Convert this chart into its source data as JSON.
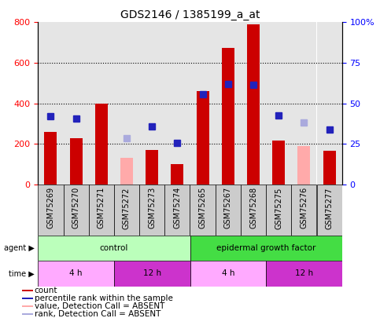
{
  "title": "GDS2146 / 1385199_a_at",
  "samples": [
    "GSM75269",
    "GSM75270",
    "GSM75271",
    "GSM75272",
    "GSM75273",
    "GSM75274",
    "GSM75265",
    "GSM75267",
    "GSM75268",
    "GSM75275",
    "GSM75276",
    "GSM75277"
  ],
  "count_values": [
    260,
    230,
    400,
    null,
    170,
    100,
    460,
    675,
    790,
    215,
    null,
    165
  ],
  "count_absent_values": [
    null,
    null,
    null,
    130,
    null,
    null,
    null,
    null,
    null,
    null,
    190,
    null
  ],
  "rank_values": [
    335,
    325,
    null,
    null,
    285,
    205,
    445,
    495,
    490,
    340,
    null,
    270
  ],
  "rank_absent_values": [
    null,
    null,
    null,
    230,
    null,
    null,
    null,
    null,
    null,
    null,
    305,
    null
  ],
  "ylim_left": [
    0,
    800
  ],
  "ylim_right": [
    0,
    100
  ],
  "yticks_left": [
    0,
    200,
    400,
    600,
    800
  ],
  "yticks_right": [
    0,
    25,
    50,
    75,
    100
  ],
  "ytick_labels_right": [
    "0",
    "25",
    "50",
    "75",
    "100%"
  ],
  "bar_color": "#cc0000",
  "bar_absent_color": "#ffaaaa",
  "rank_color": "#2222bb",
  "rank_absent_color": "#aaaadd",
  "agent_row": [
    {
      "label": "control",
      "start": 0,
      "end": 6,
      "color": "#bbffbb"
    },
    {
      "label": "epidermal growth factor",
      "start": 6,
      "end": 12,
      "color": "#44dd44"
    }
  ],
  "time_row": [
    {
      "label": "4 h",
      "start": 0,
      "end": 3,
      "color": "#ffaaff"
    },
    {
      "label": "12 h",
      "start": 3,
      "end": 6,
      "color": "#cc33cc"
    },
    {
      "label": "4 h",
      "start": 6,
      "end": 9,
      "color": "#ffaaff"
    },
    {
      "label": "12 h",
      "start": 9,
      "end": 12,
      "color": "#cc33cc"
    }
  ],
  "legend_items": [
    {
      "label": "count",
      "color": "#cc0000"
    },
    {
      "label": "percentile rank within the sample",
      "color": "#2222bb"
    },
    {
      "label": "value, Detection Call = ABSENT",
      "color": "#ffaaaa"
    },
    {
      "label": "rank, Detection Call = ABSENT",
      "color": "#aaaadd"
    }
  ],
  "bar_width": 0.5,
  "rank_marker_size": 6,
  "col_bg_color": "#cccccc"
}
